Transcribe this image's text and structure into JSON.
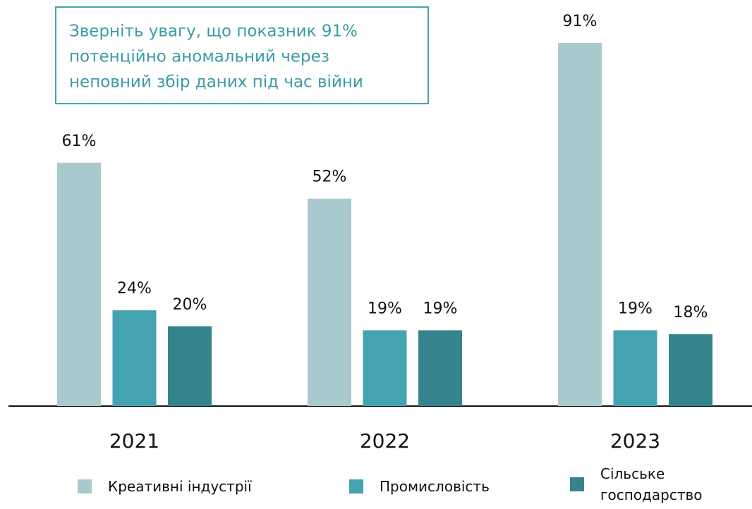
{
  "chart_data": {
    "type": "bar",
    "annotation": [
      "Зверніть увагу, що показник 91%",
      "потенційно аномальний через",
      "неповний збір даних під час війни"
    ],
    "categories": [
      "2021",
      "2022",
      "2023"
    ],
    "series": [
      {
        "name": "Креативні індустрії",
        "color": "#a8cacf",
        "values": [
          61,
          52,
          91
        ],
        "value_labels": [
          "61%",
          "52%",
          "91%"
        ]
      },
      {
        "name": "Промисловість",
        "color": "#45a2b0",
        "values": [
          24,
          19,
          19
        ],
        "value_labels": [
          "24%",
          "19%",
          "19%"
        ]
      },
      {
        "name": "Сільське господарство",
        "color": "#35838c",
        "values": [
          20,
          19,
          18
        ],
        "value_labels": [
          "20%",
          "19%",
          "18%"
        ]
      }
    ],
    "legend": "bottom"
  }
}
